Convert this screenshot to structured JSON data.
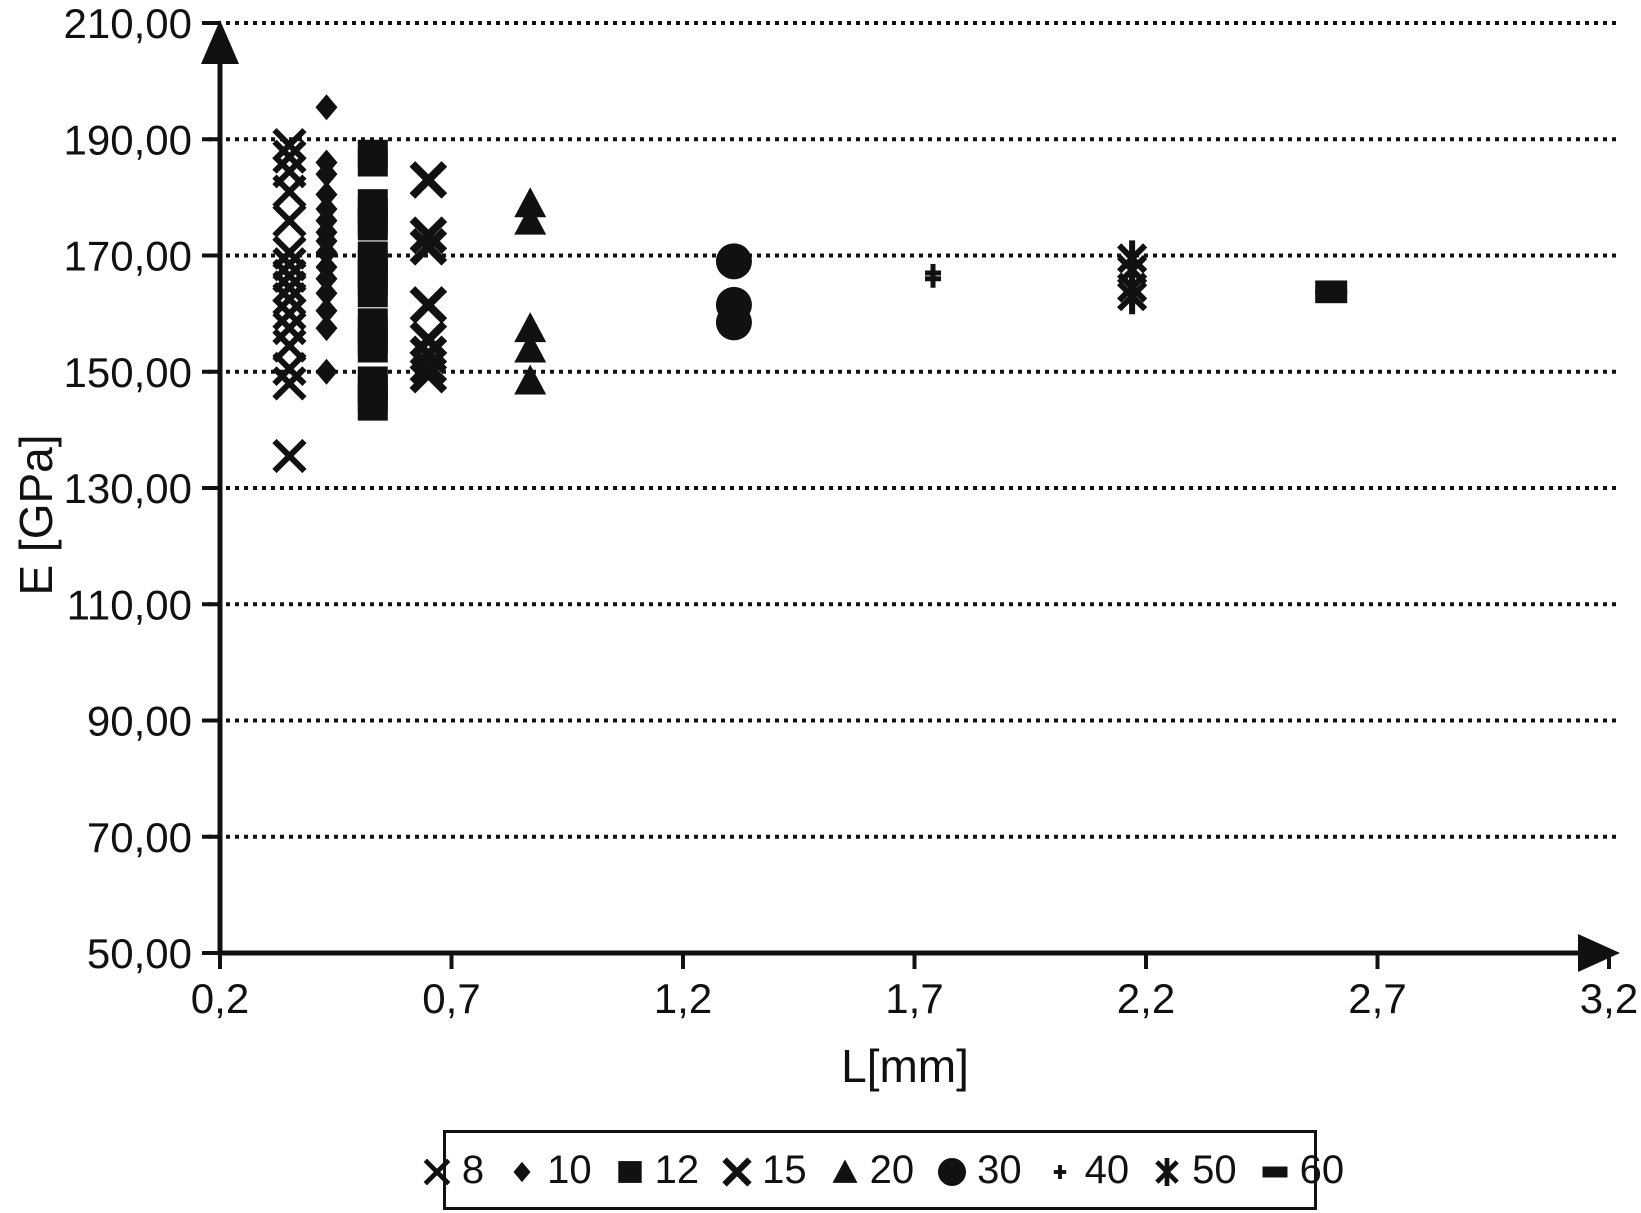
{
  "chart_data": {
    "type": "scatter",
    "title": "",
    "xlabel": "L[mm]",
    "ylabel": "E [GPa]",
    "xlim": [
      0.2,
      3.2
    ],
    "ylim": [
      50,
      210
    ],
    "grid": "horizontal-dotted",
    "legend_position": "bottom",
    "marker_color": "#111111",
    "x_ticks": [
      {
        "value": 0.2,
        "label": "0,2"
      },
      {
        "value": 0.7,
        "label": "0,7"
      },
      {
        "value": 1.2,
        "label": "1,2"
      },
      {
        "value": 1.7,
        "label": "1,7"
      },
      {
        "value": 2.2,
        "label": "2,2"
      },
      {
        "value": 2.7,
        "label": "2,7"
      },
      {
        "value": 3.2,
        "label": "3,2"
      }
    ],
    "y_ticks": [
      {
        "value": 50,
        "label": "50,00"
      },
      {
        "value": 70,
        "label": "70,00"
      },
      {
        "value": 90,
        "label": "90,00"
      },
      {
        "value": 110,
        "label": "110,00"
      },
      {
        "value": 130,
        "label": "130,00"
      },
      {
        "value": 150,
        "label": "150,00"
      },
      {
        "value": 170,
        "label": "170,00"
      },
      {
        "value": 190,
        "label": "190,00"
      },
      {
        "value": 210,
        "label": "210,00"
      }
    ],
    "series": [
      {
        "name": "8",
        "marker": "x-thin",
        "points": [
          [
            0.35,
            189
          ],
          [
            0.35,
            187
          ],
          [
            0.35,
            184.5
          ],
          [
            0.35,
            181
          ],
          [
            0.35,
            176
          ],
          [
            0.35,
            170.5
          ],
          [
            0.35,
            168.5
          ],
          [
            0.35,
            166.5
          ],
          [
            0.35,
            164.5
          ],
          [
            0.35,
            162.5
          ],
          [
            0.35,
            160
          ],
          [
            0.35,
            157.5
          ],
          [
            0.35,
            154.5
          ],
          [
            0.35,
            150.5
          ],
          [
            0.35,
            148
          ],
          [
            0.35,
            135.5
          ]
        ]
      },
      {
        "name": "10",
        "marker": "diamond",
        "points": [
          [
            0.43,
            195.5
          ],
          [
            0.43,
            186
          ],
          [
            0.43,
            184
          ],
          [
            0.43,
            180.5
          ],
          [
            0.43,
            178
          ],
          [
            0.43,
            176
          ],
          [
            0.43,
            174
          ],
          [
            0.43,
            172.5
          ],
          [
            0.43,
            170.5
          ],
          [
            0.43,
            168
          ],
          [
            0.43,
            166
          ],
          [
            0.43,
            163.5
          ],
          [
            0.43,
            160.5
          ],
          [
            0.43,
            157.5
          ],
          [
            0.43,
            150
          ]
        ]
      },
      {
        "name": "12",
        "marker": "square",
        "points": [
          [
            0.53,
            187.5
          ],
          [
            0.53,
            186
          ],
          [
            0.53,
            179
          ],
          [
            0.53,
            177.5
          ],
          [
            0.53,
            176
          ],
          [
            0.53,
            175
          ],
          [
            0.53,
            170
          ],
          [
            0.53,
            168.5
          ],
          [
            0.53,
            167
          ],
          [
            0.53,
            165.5
          ],
          [
            0.53,
            163.5
          ],
          [
            0.53,
            158.5
          ],
          [
            0.53,
            157
          ],
          [
            0.53,
            155.5
          ],
          [
            0.53,
            154
          ],
          [
            0.53,
            148.5
          ],
          [
            0.53,
            147
          ],
          [
            0.53,
            145.5
          ],
          [
            0.53,
            144
          ]
        ]
      },
      {
        "name": "15",
        "marker": "x-thick",
        "points": [
          [
            0.65,
            183
          ],
          [
            0.65,
            173.5
          ],
          [
            0.65,
            171.5
          ],
          [
            0.65,
            161.5
          ],
          [
            0.65,
            155.5
          ],
          [
            0.65,
            153
          ],
          [
            0.65,
            151
          ],
          [
            0.65,
            149.5
          ]
        ]
      },
      {
        "name": "20",
        "marker": "triangle",
        "points": [
          [
            0.87,
            179
          ],
          [
            0.87,
            176
          ],
          [
            0.87,
            157.5
          ],
          [
            0.87,
            154
          ],
          [
            0.87,
            148.5
          ]
        ]
      },
      {
        "name": "30",
        "marker": "circle",
        "points": [
          [
            1.31,
            169
          ],
          [
            1.31,
            161.5
          ],
          [
            1.31,
            158.5
          ]
        ]
      },
      {
        "name": "40",
        "marker": "plus",
        "points": [
          [
            1.74,
            167
          ],
          [
            1.74,
            166
          ]
        ]
      },
      {
        "name": "50",
        "marker": "asterisk",
        "points": [
          [
            2.17,
            169.5
          ],
          [
            2.17,
            167.5
          ],
          [
            2.17,
            164.5
          ],
          [
            2.17,
            163
          ]
        ]
      },
      {
        "name": "60",
        "marker": "dash",
        "points": [
          [
            2.6,
            164.5
          ],
          [
            2.6,
            163
          ]
        ]
      }
    ]
  }
}
